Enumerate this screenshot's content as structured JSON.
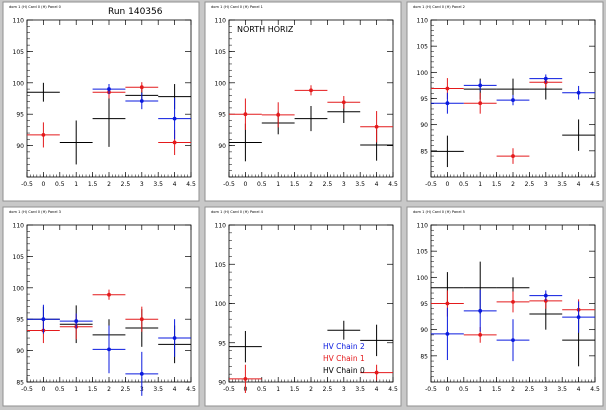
{
  "colors": {
    "series_black": "#000000",
    "series_red": "#e41a1c",
    "series_blue": "#0a1adf",
    "pad_fill": "#ffffff",
    "frame": "#8f8f8f",
    "background": "#c8c8c8"
  },
  "canvas": {
    "run_label": "Run 140356"
  },
  "legend": {
    "entries": [
      {
        "label": "HV Chain 2",
        "color": "#0a1adf"
      },
      {
        "label": "HV Chain 1",
        "color": "#e41a1c"
      },
      {
        "label": "HV Chain 0",
        "color": "#000000"
      }
    ]
  },
  "chart_data": [
    {
      "type": "scatter",
      "header": "dom 1 (H) Card 0 (H) Panel 0",
      "title": "",
      "xlabel": "",
      "ylabel": "",
      "xlim": [
        -0.5,
        4.5
      ],
      "ylim": [
        85,
        110
      ],
      "x_ticks": [
        "-0.5",
        "0",
        "0.5",
        "1",
        "1.5",
        "2",
        "2.5",
        "3",
        "3.5",
        "4",
        "4.5"
      ],
      "y_ticks": [
        "90",
        "95",
        "100",
        "105",
        "110"
      ],
      "series": [
        {
          "name": "HV Chain 0",
          "color": "#000000",
          "x_err": 0.5,
          "marker": false,
          "points": [
            {
              "x": 0,
              "y": 98.5,
              "yerr": 1.5
            },
            {
              "x": 1,
              "y": 90.5,
              "yerr": 3.5
            },
            {
              "x": 2,
              "y": 94.3,
              "yerr": 4.5
            },
            {
              "x": 3,
              "y": 98.0,
              "yerr": 1.0
            },
            {
              "x": 4,
              "y": 97.8,
              "yerr": 2.0
            }
          ]
        },
        {
          "name": "HV Chain 1",
          "color": "#e41a1c",
          "x_err": 0.5,
          "marker": true,
          "points": [
            {
              "x": 0,
              "y": 91.7,
              "yerr": 2.0
            },
            {
              "x": 2,
              "y": 98.5,
              "yerr": 1.0
            },
            {
              "x": 3,
              "y": 99.3,
              "yerr": 0.8
            },
            {
              "x": 4,
              "y": 90.5,
              "yerr": 2.0
            }
          ]
        },
        {
          "name": "HV Chain 2",
          "color": "#0a1adf",
          "x_err": 0.5,
          "marker": true,
          "points": [
            {
              "x": 2,
              "y": 99.0,
              "yerr": 0.8
            },
            {
              "x": 3,
              "y": 97.1,
              "yerr": 1.3
            },
            {
              "x": 4,
              "y": 94.3,
              "yerr": 3.3
            }
          ]
        }
      ]
    },
    {
      "type": "scatter",
      "header": "dom 1 (H) Card 0 (H) Panel 1",
      "title": "NORTH HORIZ",
      "xlabel": "",
      "ylabel": "",
      "xlim": [
        -0.5,
        4.5
      ],
      "ylim": [
        85,
        110
      ],
      "x_ticks": [
        "-0.5",
        "0",
        "0.5",
        "1",
        "1.5",
        "2",
        "2.5",
        "3",
        "3.5",
        "4",
        "4.5"
      ],
      "y_ticks": [
        "90",
        "95",
        "100",
        "105",
        "110"
      ],
      "series": [
        {
          "name": "HV Chain 0",
          "color": "#000000",
          "x_err": 0.5,
          "marker": false,
          "points": [
            {
              "x": 0,
              "y": 90.5,
              "yerr": 3.0
            },
            {
              "x": 1,
              "y": 93.6,
              "yerr": 1.8
            },
            {
              "x": 2,
              "y": 94.3,
              "yerr": 2.0
            },
            {
              "x": 3,
              "y": 95.4,
              "yerr": 1.8
            },
            {
              "x": 4,
              "y": 90.1,
              "yerr": 2.5
            }
          ]
        },
        {
          "name": "HV Chain 1",
          "color": "#e41a1c",
          "x_err": 0.5,
          "marker": true,
          "points": [
            {
              "x": 0,
              "y": 95.0,
              "yerr": 2.5
            },
            {
              "x": 1,
              "y": 94.9,
              "yerr": 2.0
            },
            {
              "x": 2,
              "y": 98.8,
              "yerr": 0.8
            },
            {
              "x": 3,
              "y": 96.9,
              "yerr": 1.0
            },
            {
              "x": 4,
              "y": 93.0,
              "yerr": 2.5
            }
          ]
        }
      ]
    },
    {
      "type": "scatter",
      "header": "dom 1 (H) Card 0 (H) Panel 2",
      "title": "",
      "xlabel": "",
      "ylabel": "",
      "xlim": [
        -0.5,
        4.5
      ],
      "ylim": [
        80,
        110
      ],
      "x_ticks": [
        "-0.5",
        "0",
        "0.5",
        "1",
        "1.5",
        "2",
        "2.5",
        "3",
        "3.5",
        "4",
        "4.5"
      ],
      "y_ticks": [
        "85",
        "90",
        "95",
        "100",
        "105",
        "110"
      ],
      "series": [
        {
          "name": "HV Chain 0",
          "color": "#000000",
          "x_err": 0.5,
          "marker": false,
          "points": [
            {
              "x": 0,
              "y": 84.9,
              "yerr": 3.0
            },
            {
              "x": 1,
              "y": 96.8,
              "yerr": 2.0
            },
            {
              "x": 2,
              "y": 96.8,
              "yerr": 2.0
            },
            {
              "x": 3,
              "y": 96.8,
              "yerr": 2.0
            },
            {
              "x": 4,
              "y": 88.0,
              "yerr": 3.0
            }
          ]
        },
        {
          "name": "HV Chain 1",
          "color": "#e41a1c",
          "x_err": 0.5,
          "marker": true,
          "points": [
            {
              "x": 0,
              "y": 96.9,
              "yerr": 2.0
            },
            {
              "x": 1,
              "y": 94.1,
              "yerr": 2.0
            },
            {
              "x": 2,
              "y": 84.0,
              "yerr": 1.5
            },
            {
              "x": 3,
              "y": 98.1,
              "yerr": 1.0
            }
          ]
        },
        {
          "name": "HV Chain 2",
          "color": "#0a1adf",
          "x_err": 0.5,
          "marker": true,
          "points": [
            {
              "x": 0,
              "y": 94.1,
              "yerr": 2.0
            },
            {
              "x": 1,
              "y": 97.5,
              "yerr": 1.0
            },
            {
              "x": 2,
              "y": 94.7,
              "yerr": 1.0
            },
            {
              "x": 3,
              "y": 98.8,
              "yerr": 0.8
            },
            {
              "x": 4,
              "y": 96.1,
              "yerr": 1.3
            }
          ]
        }
      ]
    },
    {
      "type": "scatter",
      "header": "dom 1 (H) Card 0 (H) Panel 3",
      "title": "",
      "xlabel": "",
      "ylabel": "",
      "xlim": [
        -0.5,
        4.5
      ],
      "ylim": [
        85,
        110
      ],
      "x_ticks": [
        "-0.5",
        "0",
        "0.5",
        "1",
        "1.5",
        "2",
        "2.5",
        "3",
        "3.5",
        "4",
        "4.5"
      ],
      "y_ticks": [
        "85",
        "90",
        "95",
        "100",
        "105",
        "110"
      ],
      "series": [
        {
          "name": "HV Chain 0",
          "color": "#000000",
          "x_err": 0.5,
          "marker": false,
          "points": [
            {
              "x": 0,
              "y": 95.0,
              "yerr": 2.0
            },
            {
              "x": 1,
              "y": 94.2,
              "yerr": 3.0
            },
            {
              "x": 2,
              "y": 92.5,
              "yerr": 2.5
            },
            {
              "x": 3,
              "y": 93.6,
              "yerr": 3.0
            },
            {
              "x": 4,
              "y": 91.0,
              "yerr": 3.0
            }
          ]
        },
        {
          "name": "HV Chain 1",
          "color": "#e41a1c",
          "x_err": 0.5,
          "marker": true,
          "points": [
            {
              "x": 0,
              "y": 93.2,
              "yerr": 2.0
            },
            {
              "x": 1,
              "y": 93.8,
              "yerr": 2.0
            },
            {
              "x": 2,
              "y": 98.9,
              "yerr": 0.8
            },
            {
              "x": 3,
              "y": 95.0,
              "yerr": 2.0
            }
          ]
        },
        {
          "name": "HV Chain 2",
          "color": "#0a1adf",
          "x_err": 0.5,
          "marker": true,
          "points": [
            {
              "x": 0,
              "y": 95.0,
              "yerr": 2.3
            },
            {
              "x": 1,
              "y": 94.7,
              "yerr": 1.2
            },
            {
              "x": 2,
              "y": 90.2,
              "yerr": 3.8
            },
            {
              "x": 3,
              "y": 86.3,
              "yerr": 3.5
            },
            {
              "x": 4,
              "y": 92.0,
              "yerr": 3.0
            }
          ]
        }
      ]
    },
    {
      "type": "scatter",
      "header": "dom 1 (H) Card 0 (H) Panel 4",
      "title": "",
      "xlabel": "",
      "ylabel": "",
      "xlim": [
        -0.5,
        4.5
      ],
      "ylim": [
        90,
        110
      ],
      "x_ticks": [
        "-0.5",
        "0",
        "0.5",
        "1",
        "1.5",
        "2",
        "2.5",
        "3",
        "3.5",
        "4",
        "4.5"
      ],
      "y_ticks": [
        "90",
        "95",
        "100",
        "105",
        "110"
      ],
      "series": [
        {
          "name": "HV Chain 0",
          "color": "#000000",
          "x_err": 0.5,
          "marker": false,
          "points": [
            {
              "x": 0,
              "y": 94.5,
              "yerr": 2.0
            },
            {
              "x": 3,
              "y": 96.6,
              "yerr": 1.2
            },
            {
              "x": 4,
              "y": 95.3,
              "yerr": 2.0
            }
          ]
        },
        {
          "name": "HV Chain 1",
          "color": "#e41a1c",
          "x_err": 0.5,
          "marker": true,
          "points": [
            {
              "x": 0,
              "y": 90.4,
              "yerr": 1.8
            },
            {
              "x": 4,
              "y": 91.2,
              "yerr": 1.0
            }
          ]
        }
      ]
    },
    {
      "type": "scatter",
      "header": "dom 1 (H) Card 0 (H) Panel 5",
      "title": "",
      "xlabel": "",
      "ylabel": "",
      "xlim": [
        -0.5,
        4.5
      ],
      "ylim": [
        80,
        110
      ],
      "x_ticks": [
        "-0.5",
        "0",
        "0.5",
        "1",
        "1.5",
        "2",
        "2.5",
        "3",
        "3.5",
        "4",
        "4.5"
      ],
      "y_ticks": [
        "85",
        "90",
        "95",
        "100",
        "105",
        "110"
      ],
      "series": [
        {
          "name": "HV Chain 0",
          "color": "#000000",
          "x_err": 0.5,
          "marker": false,
          "points": [
            {
              "x": 0,
              "y": 98.0,
              "yerr": 3.0
            },
            {
              "x": 1,
              "y": 98.0,
              "yerr": 5.0
            },
            {
              "x": 2,
              "y": 98.0,
              "yerr": 2.0
            },
            {
              "x": 3,
              "y": 93.0,
              "yerr": 3.0
            },
            {
              "x": 4,
              "y": 88.0,
              "yerr": 5.0
            }
          ]
        },
        {
          "name": "HV Chain 1",
          "color": "#e41a1c",
          "x_err": 0.5,
          "marker": true,
          "points": [
            {
              "x": 0,
              "y": 95.0,
              "yerr": 2.5
            },
            {
              "x": 1,
              "y": 89.0,
              "yerr": 1.5
            },
            {
              "x": 2,
              "y": 95.3,
              "yerr": 2.0
            },
            {
              "x": 3,
              "y": 95.5,
              "yerr": 1.5
            },
            {
              "x": 4,
              "y": 93.8,
              "yerr": 2.0
            }
          ]
        },
        {
          "name": "HV Chain 2",
          "color": "#0a1adf",
          "x_err": 0.5,
          "marker": true,
          "points": [
            {
              "x": 0,
              "y": 89.2,
              "yerr": 5.0
            },
            {
              "x": 1,
              "y": 93.6,
              "yerr": 4.0
            },
            {
              "x": 2,
              "y": 88.0,
              "yerr": 4.0
            },
            {
              "x": 3,
              "y": 96.5,
              "yerr": 1.0
            },
            {
              "x": 4,
              "y": 92.4,
              "yerr": 3.0
            }
          ]
        }
      ]
    }
  ]
}
